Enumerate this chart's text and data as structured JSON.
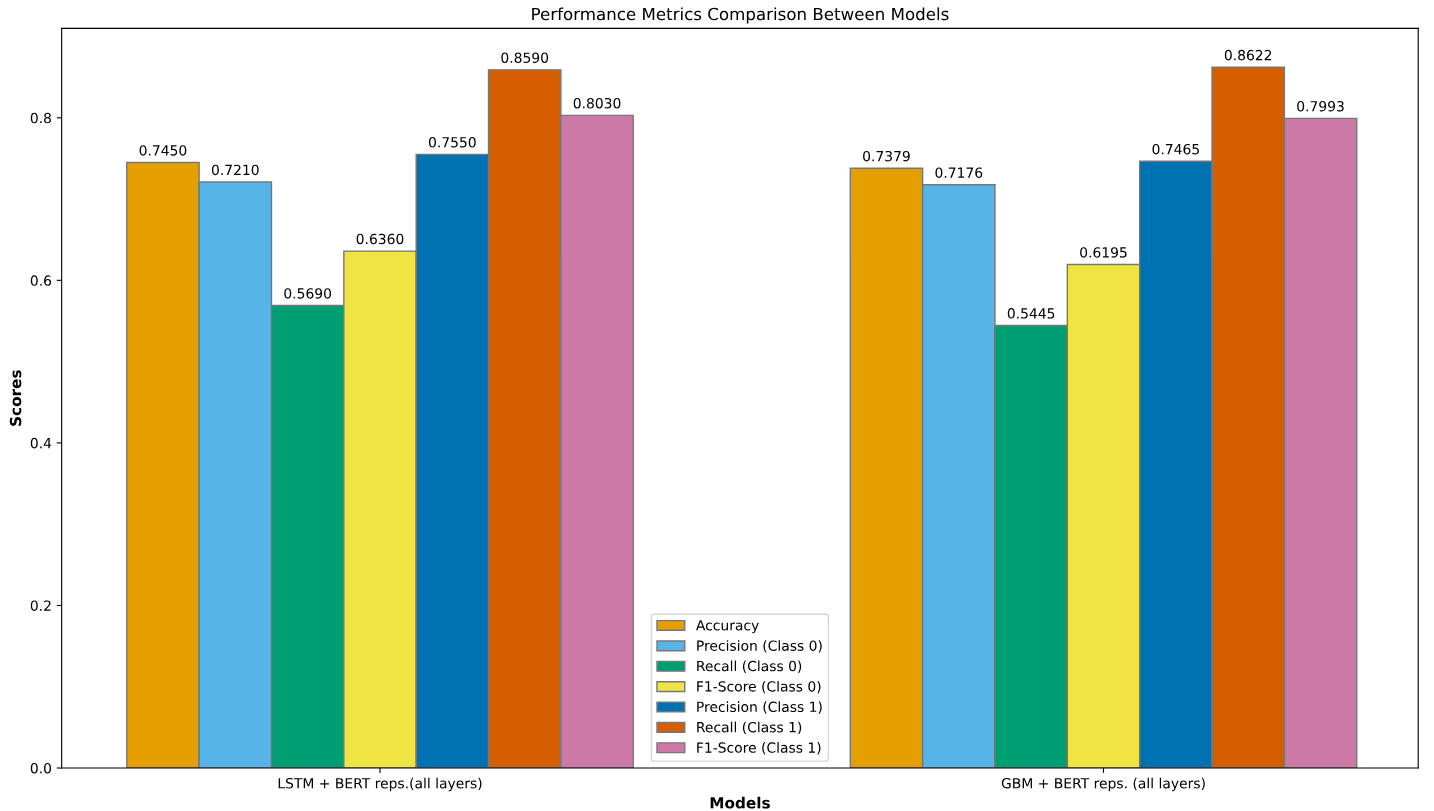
{
  "chart_data": {
    "type": "bar",
    "title": "Performance Metrics Comparison Between Models",
    "xlabel": "Models",
    "ylabel": "Scores",
    "categories": [
      "LSTM + BERT reps.(all layers)",
      "GBM + BERT reps. (all layers)"
    ],
    "series": [
      {
        "name": "Accuracy",
        "color": "#e69f00",
        "values": [
          0.745,
          0.7379
        ],
        "value_labels": [
          "0.7450",
          "0.7379"
        ]
      },
      {
        "name": "Precision (Class 0)",
        "color": "#56b4e9",
        "values": [
          0.721,
          0.7176
        ],
        "value_labels": [
          "0.7210",
          "0.7176"
        ]
      },
      {
        "name": "Recall (Class 0)",
        "color": "#009e73",
        "values": [
          0.569,
          0.5445
        ],
        "value_labels": [
          "0.5690",
          "0.5445"
        ]
      },
      {
        "name": "F1-Score (Class 0)",
        "color": "#f0e442",
        "values": [
          0.636,
          0.6195
        ],
        "value_labels": [
          "0.6360",
          "0.6195"
        ]
      },
      {
        "name": "Precision (Class 1)",
        "color": "#0072b2",
        "values": [
          0.755,
          0.7465
        ],
        "value_labels": [
          "0.7550",
          "0.7465"
        ]
      },
      {
        "name": "Recall (Class 1)",
        "color": "#d55e00",
        "values": [
          0.859,
          0.8622
        ],
        "value_labels": [
          "0.8590",
          "0.8622"
        ]
      },
      {
        "name": "F1-Score (Class 1)",
        "color": "#cc79a7",
        "values": [
          0.803,
          0.7993
        ],
        "value_labels": [
          "0.8030",
          "0.7993"
        ]
      }
    ],
    "ylim": [
      0,
      0.91
    ],
    "yticks": [
      {
        "value": 0,
        "label": "0.0"
      },
      {
        "value": 0.2,
        "label": "0.2"
      },
      {
        "value": 0.4,
        "label": "0.4"
      },
      {
        "value": 0.6,
        "label": "0.6"
      },
      {
        "value": 0.8,
        "label": "0.8"
      }
    ],
    "legend": "bottom",
    "grid": false
  }
}
